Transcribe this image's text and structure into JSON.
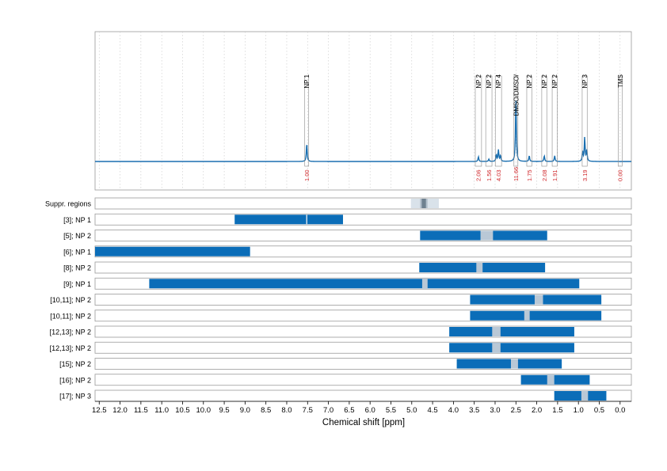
{
  "chart_data": {
    "type": "nmr-spectrum-with-integration-ranges",
    "xlabel": "Chemical shift [ppm]",
    "xlim": [
      12.6,
      -0.27
    ],
    "x_ticks": [
      12.5,
      12.0,
      11.5,
      11.0,
      10.5,
      10.0,
      9.5,
      9.0,
      8.5,
      8.0,
      7.5,
      7.0,
      6.5,
      6.0,
      5.5,
      5.0,
      4.5,
      4.0,
      3.5,
      3.0,
      2.5,
      2.0,
      1.5,
      1.0,
      0.5,
      0.0
    ],
    "x_tick_labels": [
      "12.5",
      "12.0",
      "11.5",
      "11.0",
      "10.5",
      "10.0",
      "9.5",
      "9.0",
      "8.5",
      "8.0",
      "7.5",
      "7.0",
      "6.5",
      "6.0",
      "5.5",
      "5.0",
      "4.5",
      "4.0",
      "3.5",
      "3.0",
      "2.5",
      "2.0",
      "1.5",
      "1.0",
      "0.5",
      "0.0"
    ],
    "grid": true,
    "spectrum_color": "#1a6fb0",
    "peaks": [
      {
        "ppm": 7.52,
        "height": 0.95,
        "label": "NP 1",
        "integral": "1.00",
        "box_width": 0.04
      },
      {
        "ppm": 3.4,
        "height": 0.25,
        "label": "NP 2",
        "integral": "2.06",
        "box_width": 0.15
      },
      {
        "ppm": 3.15,
        "height": 0.12,
        "label": "NP 2",
        "integral": "1.56",
        "box_width": 0.15
      },
      {
        "ppm": 2.92,
        "height": 0.6,
        "label": "NP 4",
        "integral": "4.03",
        "box_width": 0.15
      },
      {
        "ppm": 2.5,
        "height": 3.4,
        "label": "DMSO/DMSO/",
        "integral": "11.66",
        "box_width": 0.04
      },
      {
        "ppm": 2.18,
        "height": 0.3,
        "label": "NP 2",
        "integral": "1.75",
        "box_width": 0.12
      },
      {
        "ppm": 1.82,
        "height": 0.3,
        "label": "NP 2",
        "integral": "2.08",
        "box_width": 0.12
      },
      {
        "ppm": 1.57,
        "height": 0.3,
        "label": "NP 2",
        "integral": "1.91",
        "box_width": 0.12
      },
      {
        "ppm": 0.85,
        "height": 1.25,
        "label": "NP 3",
        "integral": "3.19",
        "box_width": 0.12
      },
      {
        "ppm": 0.0,
        "height": 0.0,
        "label": "TMS",
        "integral": "0.00",
        "box_width": 0.04
      }
    ],
    "rows": [
      {
        "label": "Suppr. regions",
        "type": "suppression",
        "outer": [
          5.02,
          4.35
        ],
        "inner": [
          4.8,
          4.62
        ],
        "core": [
          4.76,
          4.66
        ]
      },
      {
        "label": "[3]; NP 1",
        "ranges": [
          [
            9.25,
            6.65
          ]
        ],
        "gaps": [
          7.52
        ]
      },
      {
        "label": "[5]; NP 2",
        "ranges": [
          [
            4.8,
            1.75
          ]
        ],
        "gaps": [
          [
            3.35,
            3.05
          ]
        ]
      },
      {
        "label": "[6]; NP 1",
        "ranges": [
          [
            12.6,
            8.88
          ]
        ],
        "gaps": []
      },
      {
        "label": "[8]; NP 2",
        "ranges": [
          [
            4.82,
            1.8
          ]
        ],
        "gaps": [
          [
            3.45,
            3.3
          ]
        ]
      },
      {
        "label": "[9]; NP 1",
        "ranges": [
          [
            11.3,
            0.98
          ]
        ],
        "gaps": [
          [
            4.75,
            4.62
          ]
        ]
      },
      {
        "label": "[10,11]; NP 2",
        "ranges": [
          [
            3.6,
            0.45
          ]
        ],
        "gaps": [
          [
            2.05,
            1.85
          ]
        ]
      },
      {
        "label": "[10,11]; NP 2",
        "ranges": [
          [
            3.6,
            0.45
          ]
        ],
        "gaps": [
          [
            2.3,
            2.17
          ]
        ]
      },
      {
        "label": "[12,13]; NP 2",
        "ranges": [
          [
            4.1,
            1.1
          ]
        ],
        "gaps": [
          [
            3.07,
            2.87
          ]
        ]
      },
      {
        "label": "[12,13]; NP 2",
        "ranges": [
          [
            4.1,
            1.1
          ]
        ],
        "gaps": [
          [
            3.07,
            2.87
          ]
        ]
      },
      {
        "label": "[15]; NP 2",
        "ranges": [
          [
            3.92,
            1.4
          ]
        ],
        "gaps": [
          [
            2.62,
            2.45
          ]
        ]
      },
      {
        "label": "[16]; NP 2",
        "ranges": [
          [
            2.38,
            0.73
          ]
        ],
        "gaps": [
          [
            1.75,
            1.58
          ]
        ]
      },
      {
        "label": "[17]; NP 3",
        "ranges": [
          [
            1.58,
            0.33
          ]
        ],
        "gaps": [
          [
            0.93,
            0.77
          ]
        ]
      }
    ],
    "colors": {
      "bar": "#0b6db8",
      "gap": "#b9c8d6",
      "suppr_outer": "#d9e2ea",
      "suppr_inner": "#b3c0cc",
      "suppr_core": "#6f8190",
      "label_red": "#d0262a",
      "frame": "#9a9a9a",
      "grid": "#c8c8c8"
    }
  }
}
